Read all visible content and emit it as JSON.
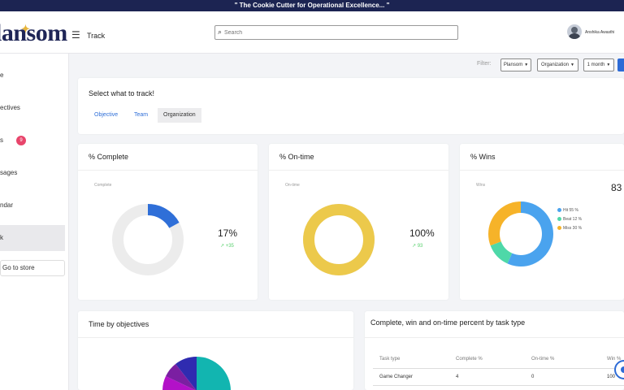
{
  "banner": {
    "text": "\" The Cookie Cutter for Operational Excellence... \""
  },
  "header": {
    "logo": "lansom",
    "page_name": "Track",
    "search_placeholder": "Search",
    "user_name": "Anshika Awasthi"
  },
  "sidebar": {
    "items": [
      {
        "label": "e"
      },
      {
        "label": "ectives"
      },
      {
        "label": "s",
        "badge": "9"
      },
      {
        "label": "sages"
      },
      {
        "label": "ndar"
      },
      {
        "label": "k"
      }
    ],
    "store_button": "Go to store"
  },
  "filter": {
    "label": "Filter:",
    "plansom": "Plansom",
    "organization": "Organization",
    "period": "1 month"
  },
  "track": {
    "title": "Select what to track!",
    "tabs": [
      "Objective",
      "Team",
      "Organization"
    ],
    "active_tab": "Organization"
  },
  "cards": {
    "complete": {
      "title": "% Complete",
      "tag": "Complete",
      "value": "17%",
      "trend": "+35",
      "percent": 17,
      "color": "#2f6fd8"
    },
    "ontime": {
      "title": "% On-time",
      "tag": "On-time",
      "value": "100%",
      "trend": "93",
      "percent": 100,
      "color": "#ecc94b"
    },
    "wins": {
      "title": "% Wins",
      "tag": "Wins",
      "value": "83",
      "legend": [
        {
          "label": "Hit 55 %",
          "color": "#4aa3ee",
          "value": 55
        },
        {
          "label": "Beat 12 %",
          "color": "#4ed8a8",
          "value": 12
        },
        {
          "label": "Miss 30 %",
          "color": "#f6b329",
          "value": 30
        }
      ]
    },
    "time_by_objectives": {
      "title": "Time by objectives"
    },
    "task_type": {
      "title": "Complete, win and on-time percent by task type",
      "headers": [
        "Task type",
        "Complete %",
        "On-time %",
        "Win %"
      ],
      "rows": [
        [
          "Game Changer",
          "4",
          "0",
          "100"
        ]
      ]
    }
  },
  "colors": {
    "banner": "#1c2452",
    "accent": "#2f6fd8",
    "badge": "#e8456b",
    "trend": "#5ad16f"
  }
}
